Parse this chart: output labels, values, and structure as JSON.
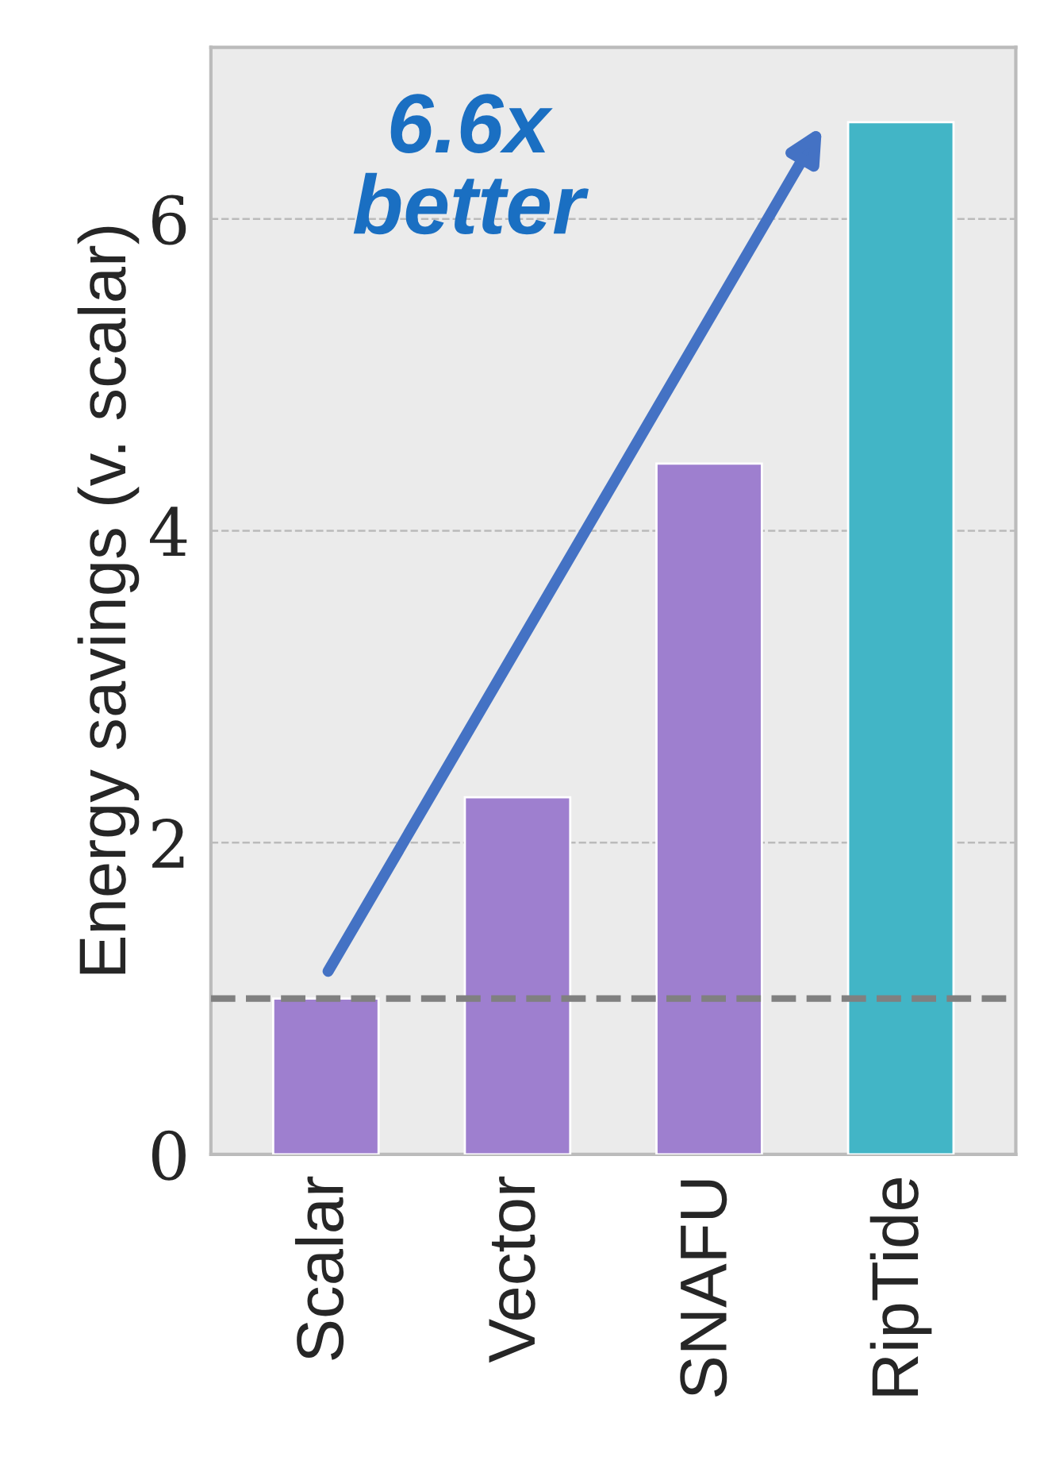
{
  "chart_data": {
    "type": "bar",
    "ylabel": "Energy savings (v. scalar)",
    "categories": [
      "Scalar",
      "Vector",
      "SNAFU",
      "RipTide"
    ],
    "values": [
      1.0,
      2.29,
      4.43,
      6.62
    ],
    "colors": [
      "#9e7fcf",
      "#9e7fcf",
      "#9e7fcf",
      "#42b5c6"
    ],
    "ylim": [
      0,
      7.1
    ],
    "yticks": [
      0,
      2,
      4,
      6
    ],
    "grid": "y",
    "ref_lines": [
      {
        "axis": "y",
        "value": 1,
        "color": "#808080",
        "line_style": "dashed"
      }
    ],
    "annotations": [
      "6.6x\nbetter"
    ]
  }
}
